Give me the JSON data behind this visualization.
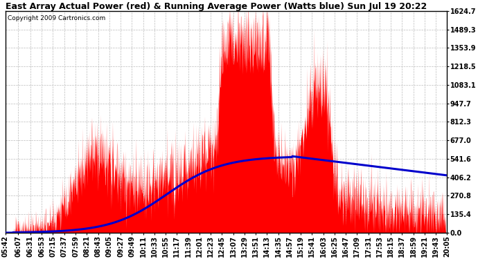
{
  "title": "East Array Actual Power (red) & Running Average Power (Watts blue) Sun Jul 19 20:22",
  "copyright": "Copyright 2009 Cartronics.com",
  "yticks": [
    0.0,
    135.4,
    270.8,
    406.2,
    541.6,
    677.0,
    812.3,
    947.7,
    1083.1,
    1218.5,
    1353.9,
    1489.3,
    1624.7
  ],
  "ymax": 1624.7,
  "ymin": 0.0,
  "title_fontsize": 9,
  "copyright_fontsize": 6.5,
  "tick_fontsize": 7,
  "background_color": "#ffffff",
  "plot_bg_color": "#ffffff",
  "grid_color": "#bbbbbb",
  "actual_color": "#ff0000",
  "avg_color": "#0000cc",
  "xtick_labels": [
    "05:42",
    "06:07",
    "06:31",
    "06:53",
    "07:15",
    "07:37",
    "07:59",
    "08:21",
    "08:43",
    "09:05",
    "09:27",
    "09:49",
    "10:11",
    "10:33",
    "10:55",
    "11:17",
    "11:39",
    "12:01",
    "12:23",
    "12:45",
    "13:07",
    "13:29",
    "13:51",
    "14:13",
    "14:35",
    "14:57",
    "15:19",
    "15:41",
    "16:03",
    "16:25",
    "16:47",
    "17:09",
    "17:31",
    "17:53",
    "18:15",
    "18:37",
    "18:59",
    "19:21",
    "19:43",
    "20:05"
  ]
}
